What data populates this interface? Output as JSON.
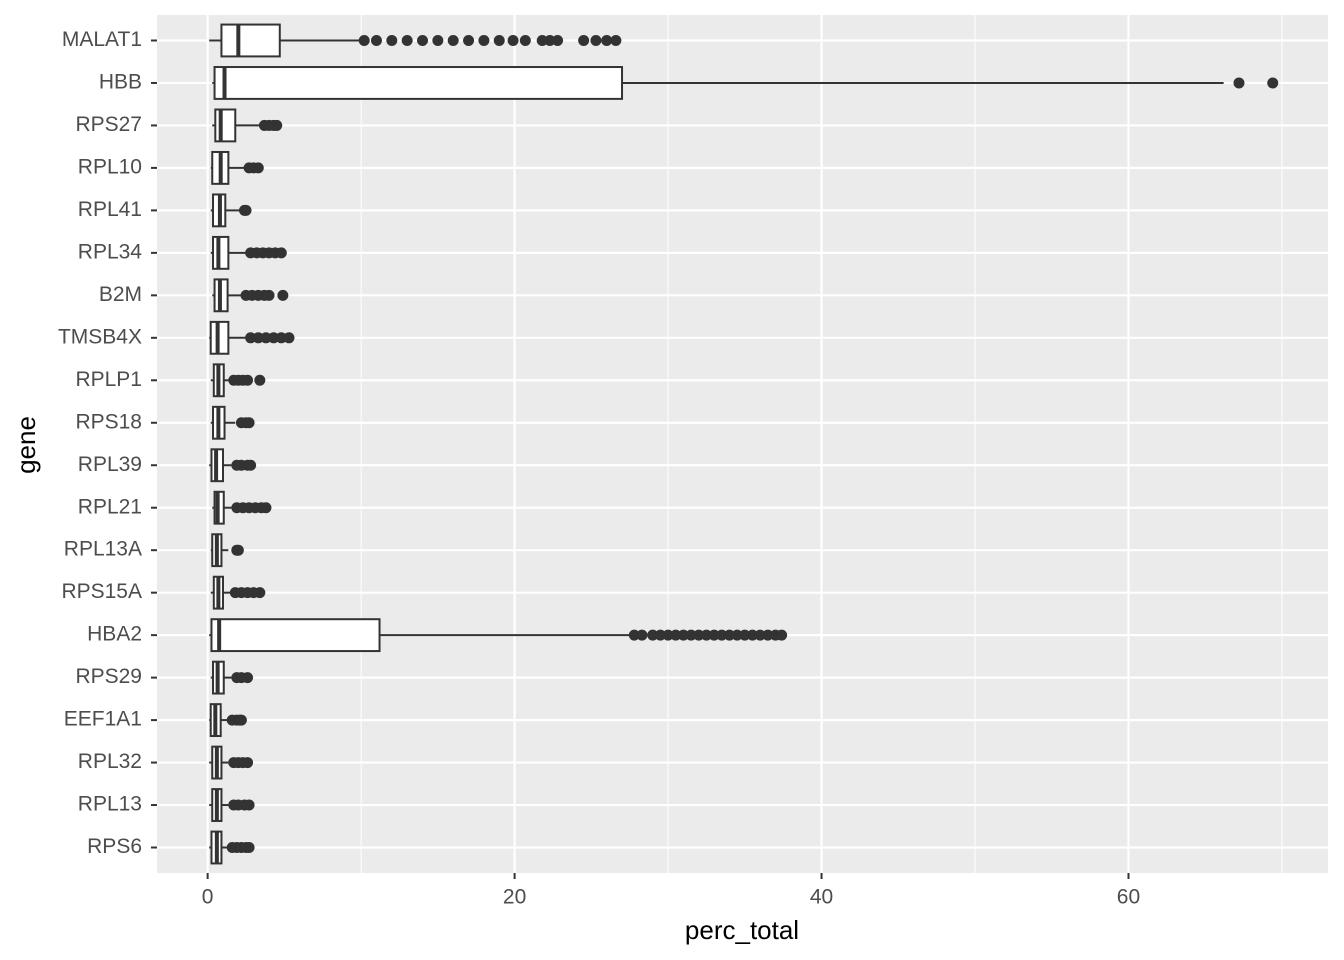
{
  "chart_data": {
    "type": "boxplot",
    "orientation": "horizontal",
    "x_label": "perc_total",
    "y_label": "gene",
    "xlim": [
      -3.3,
      73
    ],
    "xticks": [
      0,
      20,
      40,
      60
    ],
    "x_minor_grid": [
      10,
      30,
      50,
      70
    ],
    "grid": true,
    "box_fill": "#ffffff",
    "line_color": "#333333",
    "outlier_color": "#333333",
    "panel_color": "#ebebeb",
    "categories": [
      "MALAT1",
      "HBB",
      "RPS27",
      "RPL10",
      "RPL41",
      "RPL34",
      "B2M",
      "TMSB4X",
      "RPLP1",
      "RPS18",
      "RPL39",
      "RPL21",
      "RPL13A",
      "RPS15A",
      "HBA2",
      "RPS29",
      "EEF1A1",
      "RPL32",
      "RPL13",
      "RPS6"
    ],
    "boxes": [
      {
        "low": 0.1,
        "q1": 0.9,
        "median": 2.0,
        "q3": 4.7,
        "high": 10.1,
        "outliers": [
          10.2,
          11,
          12,
          13,
          14,
          15,
          16,
          17,
          18,
          19,
          19.9,
          20.7,
          21.8,
          22.3,
          22.8,
          24.5,
          25.3,
          26,
          26.6
        ]
      },
      {
        "low": 0.3,
        "q1": 0.45,
        "median": 1.1,
        "q3": 27.0,
        "high": 66.2,
        "outliers": [
          67.2,
          69.4
        ]
      },
      {
        "low": 0.3,
        "q1": 0.5,
        "median": 0.85,
        "q3": 1.8,
        "high": 3.5,
        "outliers": [
          3.7,
          4.0,
          4.3,
          4.5
        ]
      },
      {
        "low": 0.2,
        "q1": 0.3,
        "median": 0.85,
        "q3": 1.35,
        "high": 2.55,
        "outliers": [
          2.7,
          3.0,
          3.3
        ]
      },
      {
        "low": 0.2,
        "q1": 0.35,
        "median": 0.8,
        "q3": 1.15,
        "high": 2.1,
        "outliers": [
          2.4,
          2.5
        ]
      },
      {
        "low": 0.2,
        "q1": 0.35,
        "median": 0.7,
        "q3": 1.35,
        "high": 2.6,
        "outliers": [
          2.8,
          3.2,
          3.6,
          4.0,
          4.4,
          4.8
        ]
      },
      {
        "low": 0.3,
        "q1": 0.45,
        "median": 0.8,
        "q3": 1.3,
        "high": 2.4,
        "outliers": [
          2.5,
          2.9,
          3.3,
          3.7,
          4.0,
          4.9
        ]
      },
      {
        "low": 0.1,
        "q1": 0.2,
        "median": 0.65,
        "q3": 1.35,
        "high": 2.6,
        "outliers": [
          2.8,
          3.3,
          3.8,
          4.3,
          4.8,
          5.3
        ]
      },
      {
        "low": 0.2,
        "q1": 0.4,
        "median": 0.7,
        "q3": 1.05,
        "high": 1.55,
        "outliers": [
          1.7,
          2.0,
          2.3,
          2.6,
          3.4
        ]
      },
      {
        "low": 0.2,
        "q1": 0.35,
        "median": 0.7,
        "q3": 1.1,
        "high": 1.8,
        "outliers": [
          2.2,
          2.5,
          2.7
        ]
      },
      {
        "low": 0.1,
        "q1": 0.25,
        "median": 0.55,
        "q3": 1.0,
        "high": 1.55,
        "outliers": [
          1.9,
          2.2,
          2.6,
          2.8
        ]
      },
      {
        "low": 0.3,
        "q1": 0.45,
        "median": 0.65,
        "q3": 1.05,
        "high": 1.55,
        "outliers": [
          1.9,
          2.3,
          2.7,
          3.1,
          3.5,
          3.8
        ]
      },
      {
        "low": 0.2,
        "q1": 0.3,
        "median": 0.6,
        "q3": 0.9,
        "high": 1.35,
        "outliers": [
          1.9,
          2.0
        ]
      },
      {
        "low": 0.2,
        "q1": 0.4,
        "median": 0.7,
        "q3": 1.0,
        "high": 1.55,
        "outliers": [
          1.8,
          2.2,
          2.6,
          3.0,
          3.4
        ]
      },
      {
        "low": 0.1,
        "q1": 0.25,
        "median": 0.75,
        "q3": 11.2,
        "high": 27.5,
        "outliers": [
          27.8,
          28.3,
          29,
          29.5,
          30,
          30.5,
          31,
          31.5,
          32,
          32.5,
          33,
          33.5,
          34,
          34.5,
          35,
          35.5,
          36,
          36.5,
          37,
          37.4
        ]
      },
      {
        "low": 0.2,
        "q1": 0.35,
        "median": 0.65,
        "q3": 1.05,
        "high": 1.55,
        "outliers": [
          1.9,
          2.2,
          2.6
        ]
      },
      {
        "low": 0.1,
        "q1": 0.2,
        "median": 0.5,
        "q3": 0.85,
        "high": 1.3,
        "outliers": [
          1.6,
          1.9,
          2.1,
          2.2
        ]
      },
      {
        "low": 0.1,
        "q1": 0.3,
        "median": 0.6,
        "q3": 0.9,
        "high": 1.35,
        "outliers": [
          1.7,
          2.0,
          2.3,
          2.6
        ]
      },
      {
        "low": 0.1,
        "q1": 0.3,
        "median": 0.6,
        "q3": 0.9,
        "high": 1.35,
        "outliers": [
          1.7,
          2.0,
          2.4,
          2.7
        ]
      },
      {
        "low": 0.1,
        "q1": 0.25,
        "median": 0.6,
        "q3": 0.9,
        "high": 1.35,
        "outliers": [
          1.6,
          1.9,
          2.2,
          2.5,
          2.7
        ]
      }
    ]
  }
}
